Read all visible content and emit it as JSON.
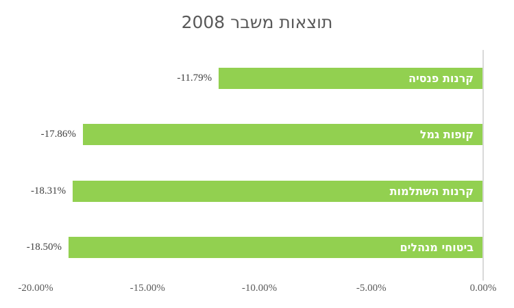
{
  "chart_data": {
    "type": "bar",
    "orientation": "horizontal",
    "title": "תוצאות משבר 2008",
    "categories": [
      "קרנות פנסיה",
      "קופות גמל",
      "קרנות השתלמות",
      "ביטוחי מנהלים"
    ],
    "values": [
      -11.79,
      -17.86,
      -18.31,
      -18.5
    ],
    "value_labels": [
      "-11.79%",
      "-17.86%",
      "-18.31%",
      "-18.50%"
    ],
    "xlabel": "",
    "ylabel": "",
    "xlim": [
      -20,
      0
    ],
    "x_ticks": [
      {
        "value": -20,
        "label": "-20.00%"
      },
      {
        "value": -15,
        "label": "-15.00%"
      },
      {
        "value": -10,
        "label": "-10.00%"
      },
      {
        "value": -5,
        "label": "-5.00%"
      },
      {
        "value": 0,
        "label": "0.00%"
      }
    ],
    "grid": false,
    "legend": false,
    "text_direction": "rtl",
    "colors": {
      "bar": "#92D050",
      "bar_label": "#FFFFFF",
      "value_label": "#404040",
      "axis_line": "#D9D9D9",
      "tick_label": "#595959",
      "title": "#595959",
      "background": "#FFFFFF"
    }
  }
}
